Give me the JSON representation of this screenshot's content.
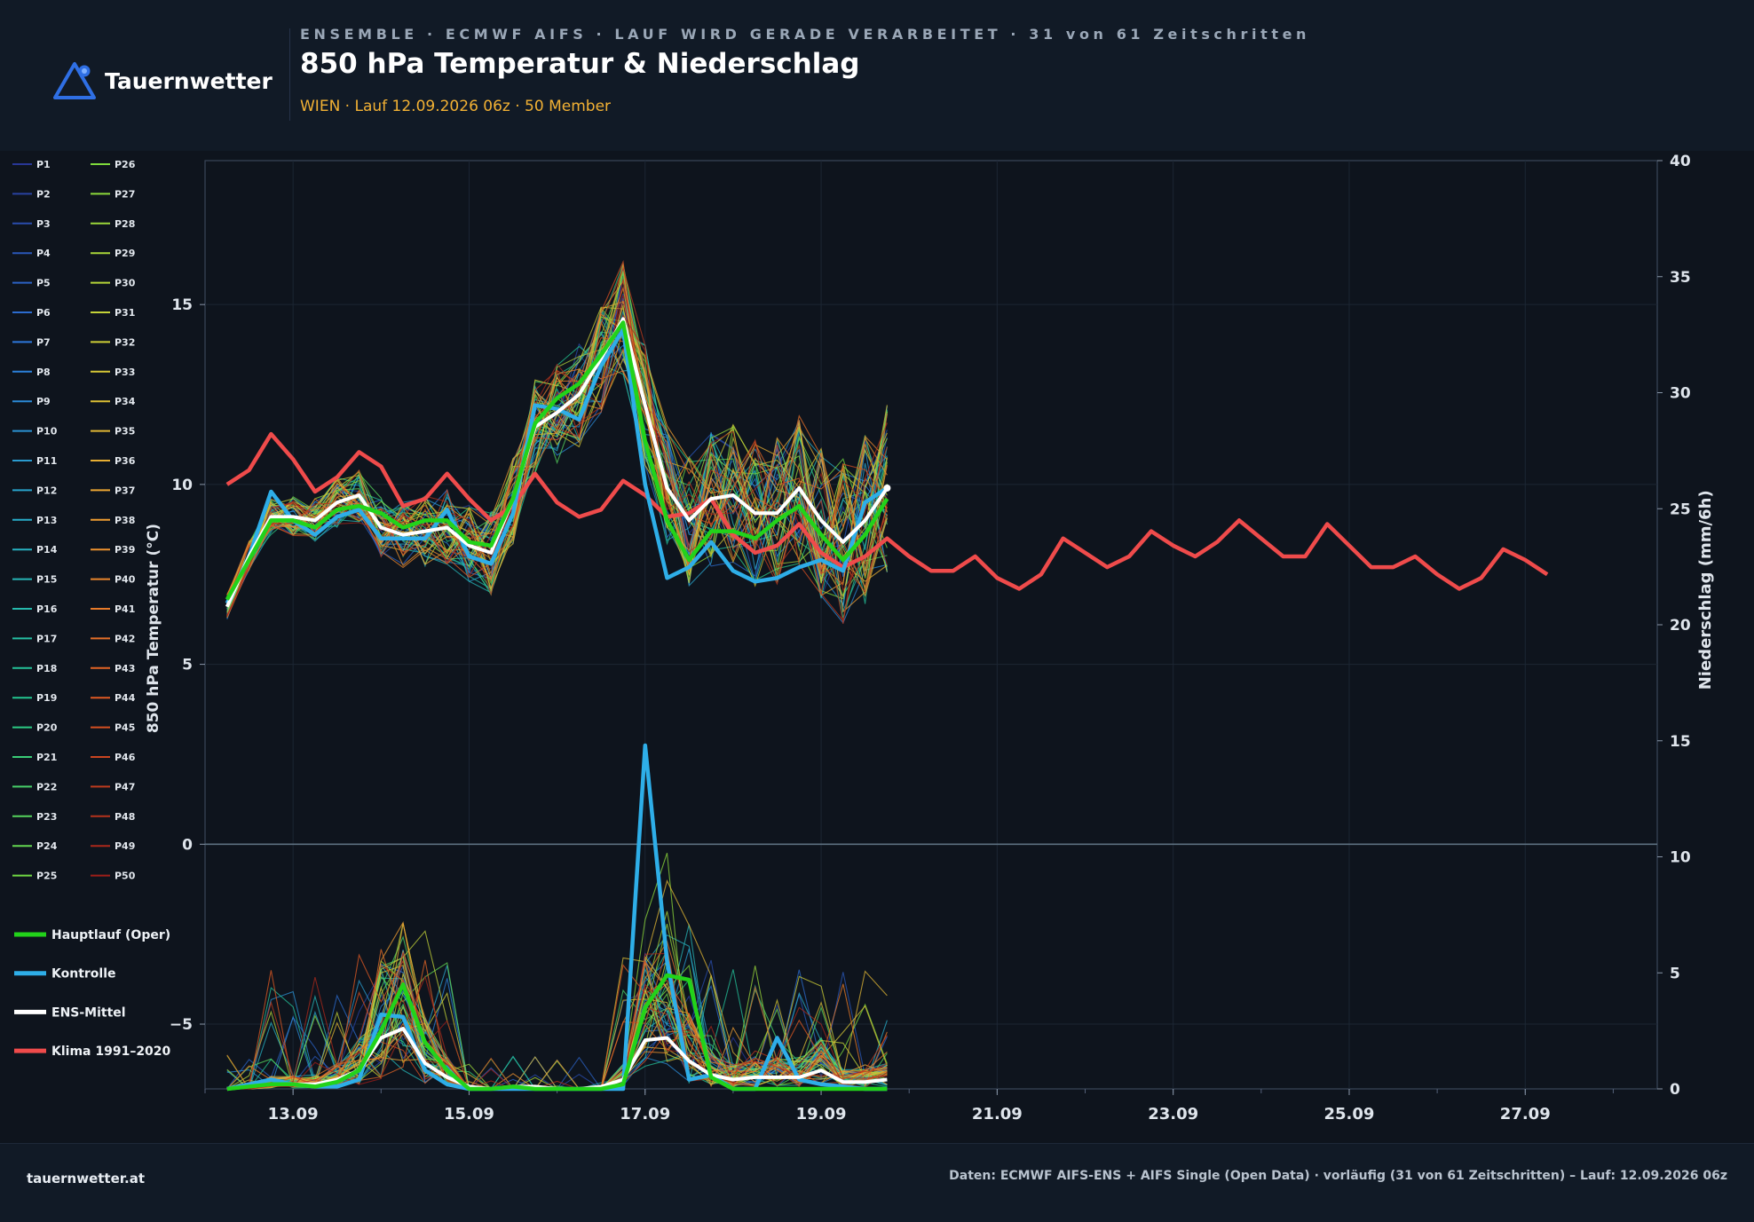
{
  "header": {
    "brand": "Tauernwetter",
    "eyebrow": "ENSEMBLE · ECMWF AIFS · LAUF WIRD GERADE VERARBEITET · 31 von 61 Zeitschritten",
    "title": "850 hPa Temperatur & Niederschlag",
    "subtitle": "WIEN · Lauf 12.09.2026 06z · 50 Member"
  },
  "footer": {
    "left": "tauernwetter.at",
    "right": "Daten: ECMWF AIFS-ENS + AIFS Single (Open Data) · vorläufig (31 von 61 Zeitschritten) – Lauf: 12.09.2026 06z"
  },
  "colors": {
    "background": "#0e141d",
    "hauptlauf": "#22d31a",
    "kontrolle": "#2eaee8",
    "ens_mittel": "#ffffff",
    "klima": "#ef4b4b",
    "accent": "#f2b134",
    "logo": "#2f6fe4"
  },
  "chart_data": {
    "type": "line",
    "title": "850 hPa Temperatur & Niederschlag",
    "x_ticks": [
      "13.09",
      "15.09",
      "17.09",
      "19.09",
      "21.09",
      "23.09",
      "25.09",
      "27.09"
    ],
    "x_start": "12.09.2026 06z",
    "x_step_hours": 6,
    "x_range_days": [
      12.0,
      28.5
    ],
    "y_left": {
      "label": "850 hPa Temperatur (°C)",
      "range": [
        -6.8,
        19.0
      ],
      "ticks": [
        -5,
        0,
        5,
        10,
        15
      ]
    },
    "y_right": {
      "label": "Niederschlag (mm/6h)",
      "range": [
        0,
        40
      ],
      "ticks": [
        0,
        5,
        10,
        15,
        20,
        25,
        30,
        35,
        40
      ]
    },
    "grid": true,
    "legend_position": "left",
    "members": [
      "P1",
      "P2",
      "P3",
      "P4",
      "P5",
      "P6",
      "P7",
      "P8",
      "P9",
      "P10",
      "P11",
      "P12",
      "P13",
      "P14",
      "P15",
      "P16",
      "P17",
      "P18",
      "P19",
      "P20",
      "P21",
      "P22",
      "P23",
      "P24",
      "P25",
      "P26",
      "P27",
      "P28",
      "P29",
      "P30",
      "P31",
      "P32",
      "P33",
      "P34",
      "P35",
      "P36",
      "P37",
      "P38",
      "P39",
      "P40",
      "P41",
      "P42",
      "P43",
      "P44",
      "P45",
      "P46",
      "P47",
      "P48",
      "P49",
      "P50"
    ],
    "series": [
      {
        "name": "Hauptlauf (Oper)",
        "temperature": [
          6.8,
          7.9,
          9.0,
          9.0,
          8.8,
          9.3,
          9.4,
          9.2,
          8.8,
          9.0,
          9.0,
          8.4,
          8.3,
          9.6,
          11.7,
          12.4,
          12.8,
          13.6,
          14.5,
          11.2,
          9.0,
          7.9,
          8.7,
          8.7,
          8.5,
          9.0,
          9.4,
          8.6,
          7.9,
          8.6,
          9.6
        ],
        "precipitation": [
          0,
          0.1,
          0.2,
          0.2,
          0.1,
          0.3,
          0.8,
          2.5,
          4.5,
          2.0,
          0.8,
          0,
          0,
          0.1,
          0,
          0,
          0,
          0,
          0.2,
          3.5,
          4.9,
          4.7,
          0.5,
          0,
          0,
          0,
          0,
          0,
          0,
          0,
          0
        ]
      },
      {
        "name": "Kontrolle",
        "temperature": [
          6.7,
          8.0,
          9.8,
          9.0,
          8.6,
          9.1,
          9.3,
          8.5,
          8.5,
          8.5,
          9.3,
          8.0,
          7.8,
          9.2,
          12.2,
          12.1,
          11.8,
          13.3,
          14.3,
          10.0,
          7.4,
          7.7,
          8.4,
          7.6,
          7.3,
          7.4,
          7.7,
          7.9,
          7.6,
          9.5,
          9.9
        ],
        "precipitation": [
          0,
          0.2,
          0.4,
          0.2,
          0.1,
          0.1,
          0.4,
          3.2,
          3.1,
          0.8,
          0.2,
          0,
          0,
          0,
          0,
          0,
          0,
          0,
          0,
          14.8,
          5.5,
          0.4,
          0.6,
          0,
          0,
          2.2,
          0.4,
          0.2,
          0.1,
          0,
          0
        ]
      },
      {
        "name": "ENS-Mittel",
        "temperature": [
          6.6,
          8.0,
          9.1,
          9.1,
          9.0,
          9.5,
          9.7,
          8.8,
          8.6,
          8.7,
          8.8,
          8.3,
          8.1,
          9.6,
          11.6,
          12.0,
          12.5,
          13.5,
          14.6,
          12.2,
          9.9,
          9.0,
          9.6,
          9.7,
          9.2,
          9.2,
          9.9,
          9.0,
          8.4,
          9.0,
          9.9
        ],
        "precipitation": [
          0,
          0.1,
          0.2,
          0.2,
          0.2,
          0.4,
          0.8,
          2.2,
          2.6,
          1.1,
          0.5,
          0.1,
          0,
          0.1,
          0.1,
          0,
          0,
          0.1,
          0.4,
          2.1,
          2.2,
          1.2,
          0.6,
          0.4,
          0.5,
          0.5,
          0.5,
          0.8,
          0.3,
          0.3,
          0.4
        ]
      },
      {
        "name": "Klima 1991–2020",
        "temperature": [
          10.0,
          10.4,
          11.4,
          10.7,
          9.8,
          10.2,
          10.9,
          10.5,
          9.4,
          9.6,
          10.3,
          9.6,
          9.0,
          9.4,
          10.3,
          9.5,
          9.1,
          9.3,
          10.1,
          9.7,
          9.1,
          9.2,
          9.6,
          8.6,
          8.1,
          8.3,
          8.9,
          8.1,
          7.7,
          8.0,
          8.5,
          8.0,
          7.6,
          7.6,
          8.0,
          7.4,
          7.1,
          7.5,
          8.5,
          8.1,
          7.7,
          8.0,
          8.7,
          8.3,
          8.0,
          8.4,
          9.0,
          8.5,
          8.0,
          8.0,
          8.9,
          8.3,
          7.7,
          7.7,
          8.0,
          7.5,
          7.1,
          7.4,
          8.2,
          7.9,
          7.5
        ]
      }
    ]
  }
}
